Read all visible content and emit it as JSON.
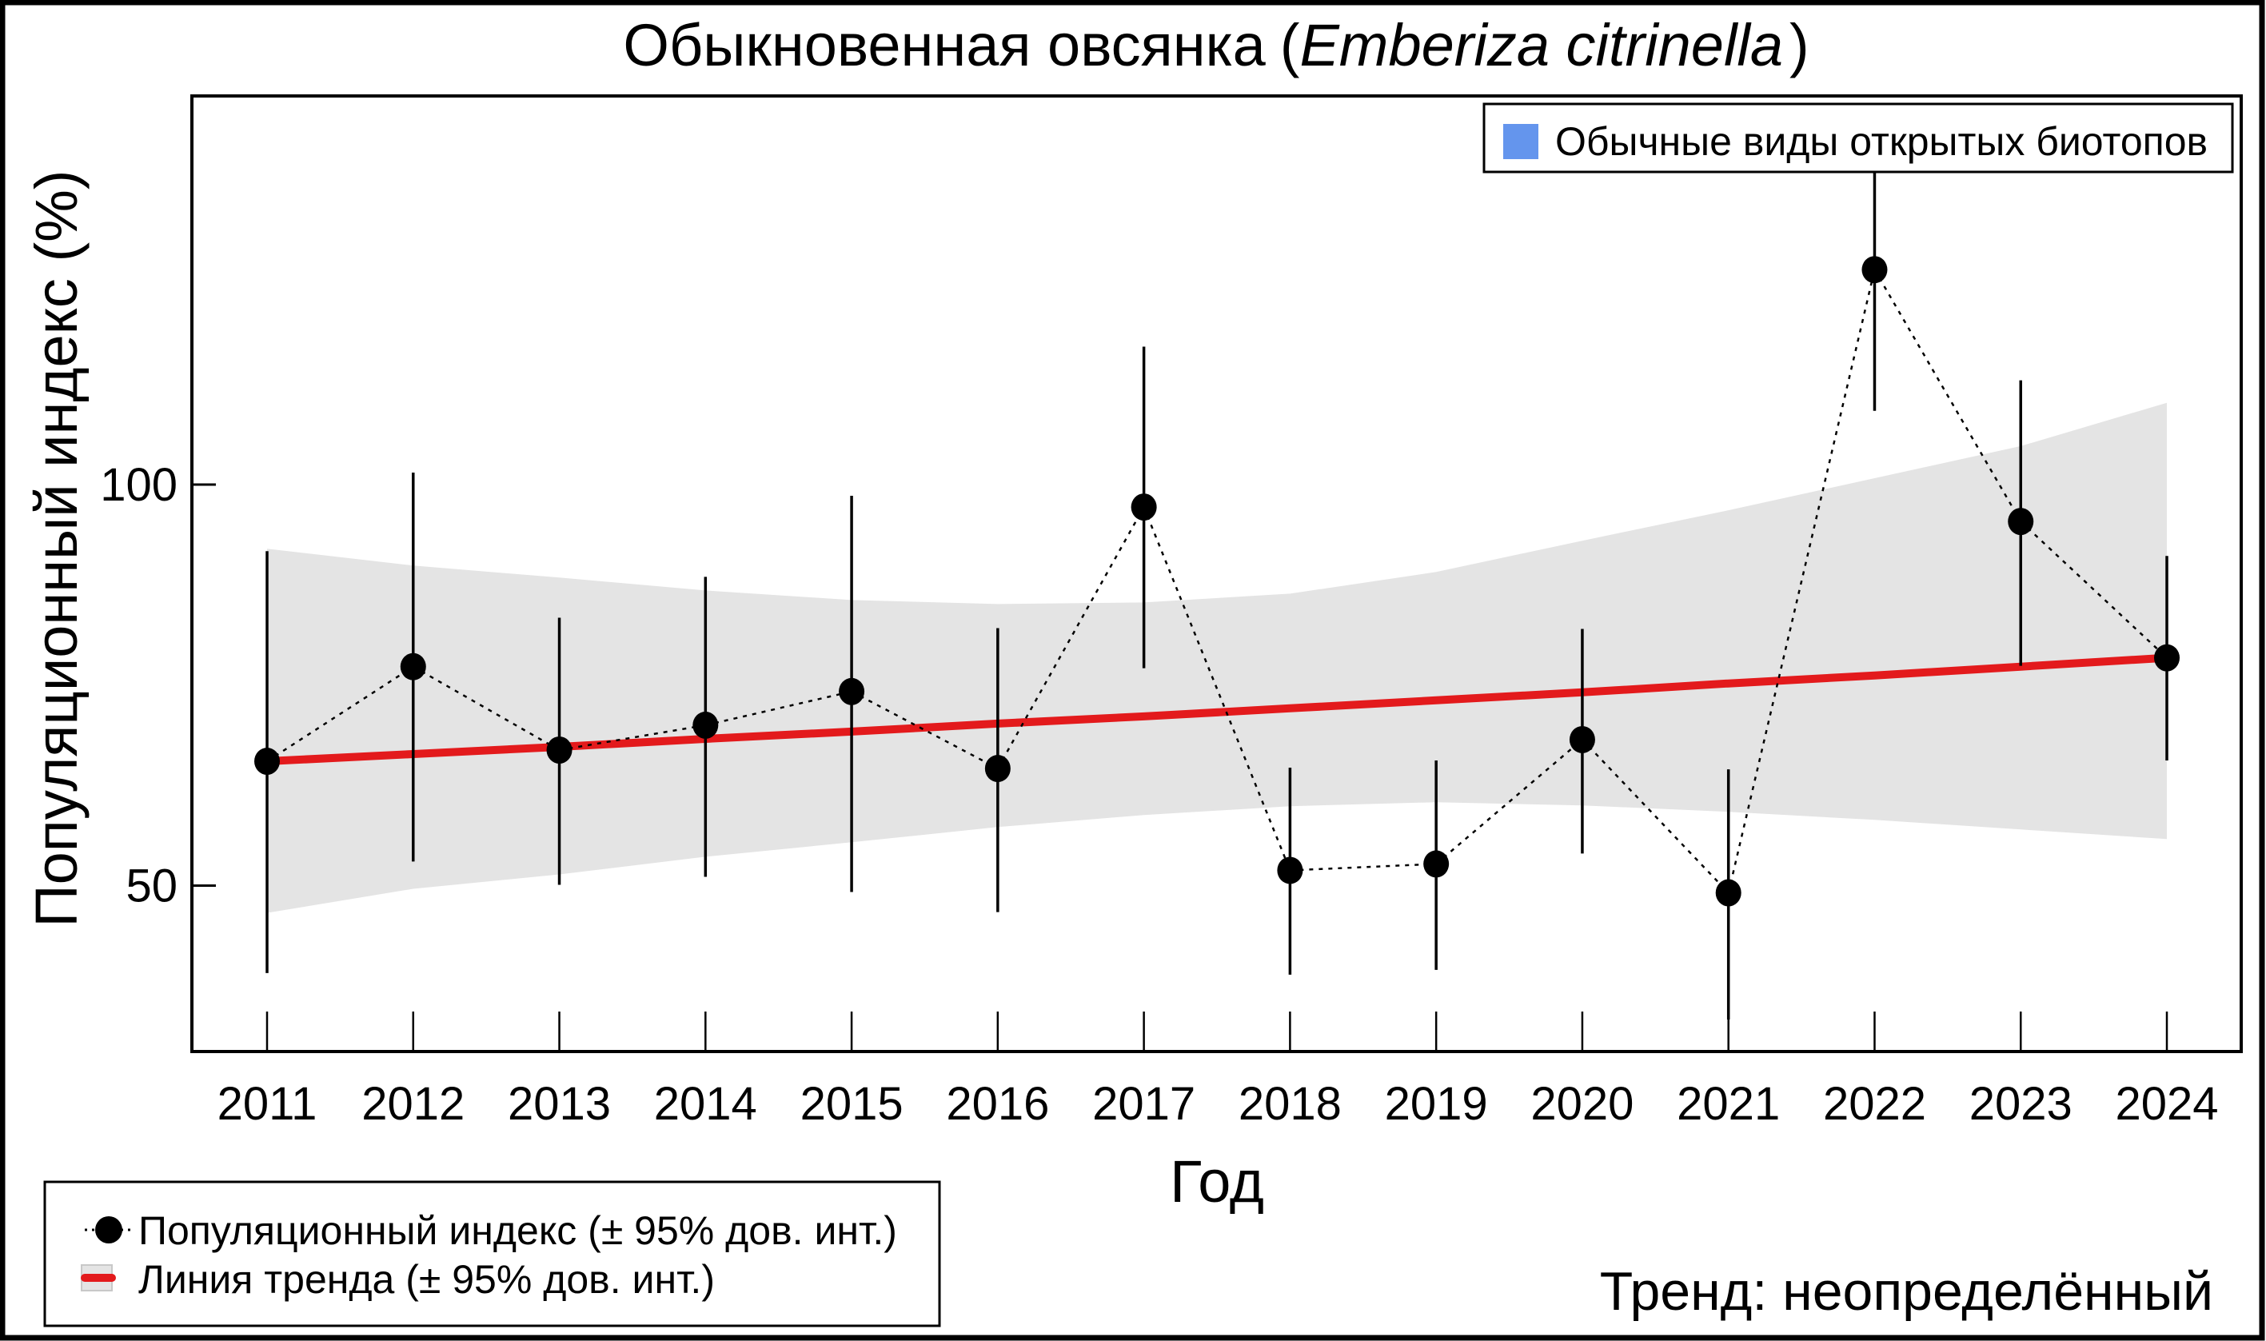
{
  "chart_data": {
    "type": "line",
    "title": {
      "common_name": "Обыкновенная овсянка",
      "open_paren": "(",
      "latin_name": "Emberiza citrinella",
      "close_paren": ")"
    },
    "xlabel": "Год",
    "ylabel": "Популяционный индекс (%)",
    "x": [
      2011,
      2012,
      2013,
      2014,
      2015,
      2016,
      2017,
      2018,
      2019,
      2020,
      2021,
      2022,
      2023,
      2024
    ],
    "x_tick_labels": [
      "2011",
      "2012",
      "2013",
      "2014",
      "2015",
      "2016",
      "2017",
      "2018",
      "2019",
      "2020",
      "2021",
      "2022",
      "2023",
      "2024"
    ],
    "y_ticks": [
      50,
      100
    ],
    "y_tick_labels": [
      "50",
      "100"
    ],
    "ylim": [
      29,
      148.5
    ],
    "grid": false,
    "series": [
      {
        "name": "Популяционный индекс (± 95% дов. инт.)",
        "style": "points-dotted",
        "color": "#000000",
        "values": [
          65.5,
          77.3,
          66.9,
          70.0,
          74.2,
          64.6,
          97.2,
          51.9,
          52.7,
          68.2,
          49.1,
          126.8,
          95.4,
          78.4
        ],
        "ci_lower": [
          39.1,
          53.0,
          50.1,
          51.1,
          49.2,
          46.7,
          77.1,
          38.9,
          39.5,
          54.0,
          33.3,
          109.2,
          77.4,
          65.6
        ],
        "ci_upper": [
          91.7,
          101.5,
          83.4,
          88.5,
          98.6,
          82.1,
          117.2,
          64.7,
          65.6,
          82.0,
          64.5,
          140.0,
          113.0,
          91.1
        ]
      },
      {
        "name": "Линия тренда (± 95% дов. инт.)",
        "style": "line-band",
        "color": "#E31A1C",
        "band_color": "#E4E4E4",
        "values": [
          65.5,
          66.4,
          67.3,
          68.3,
          69.2,
          70.2,
          71.1,
          72.1,
          73.1,
          74.1,
          75.2,
          76.2,
          77.3,
          78.4
        ],
        "band_lower": [
          46.6,
          49.6,
          51.4,
          53.6,
          55.4,
          57.3,
          58.8,
          59.9,
          60.4,
          60.0,
          59.2,
          58.2,
          57.0,
          55.8
        ],
        "band_upper": [
          92.0,
          89.9,
          88.4,
          86.8,
          85.6,
          85.1,
          85.3,
          86.4,
          89.1,
          93.0,
          96.8,
          100.8,
          104.8,
          110.2
        ]
      }
    ],
    "legends": {
      "group": {
        "position": "top-right",
        "swatch_color": "#6495ED",
        "label": "Обычные виды открытых биотопов"
      },
      "series": {
        "position": "bottom-left",
        "items": [
          {
            "label": "Популяционный индекс (± 95% дов. инт.)"
          },
          {
            "label": "Линия тренда (± 95% дов. инт.)"
          }
        ]
      }
    },
    "annotation": "Тренд: неопределённый"
  }
}
